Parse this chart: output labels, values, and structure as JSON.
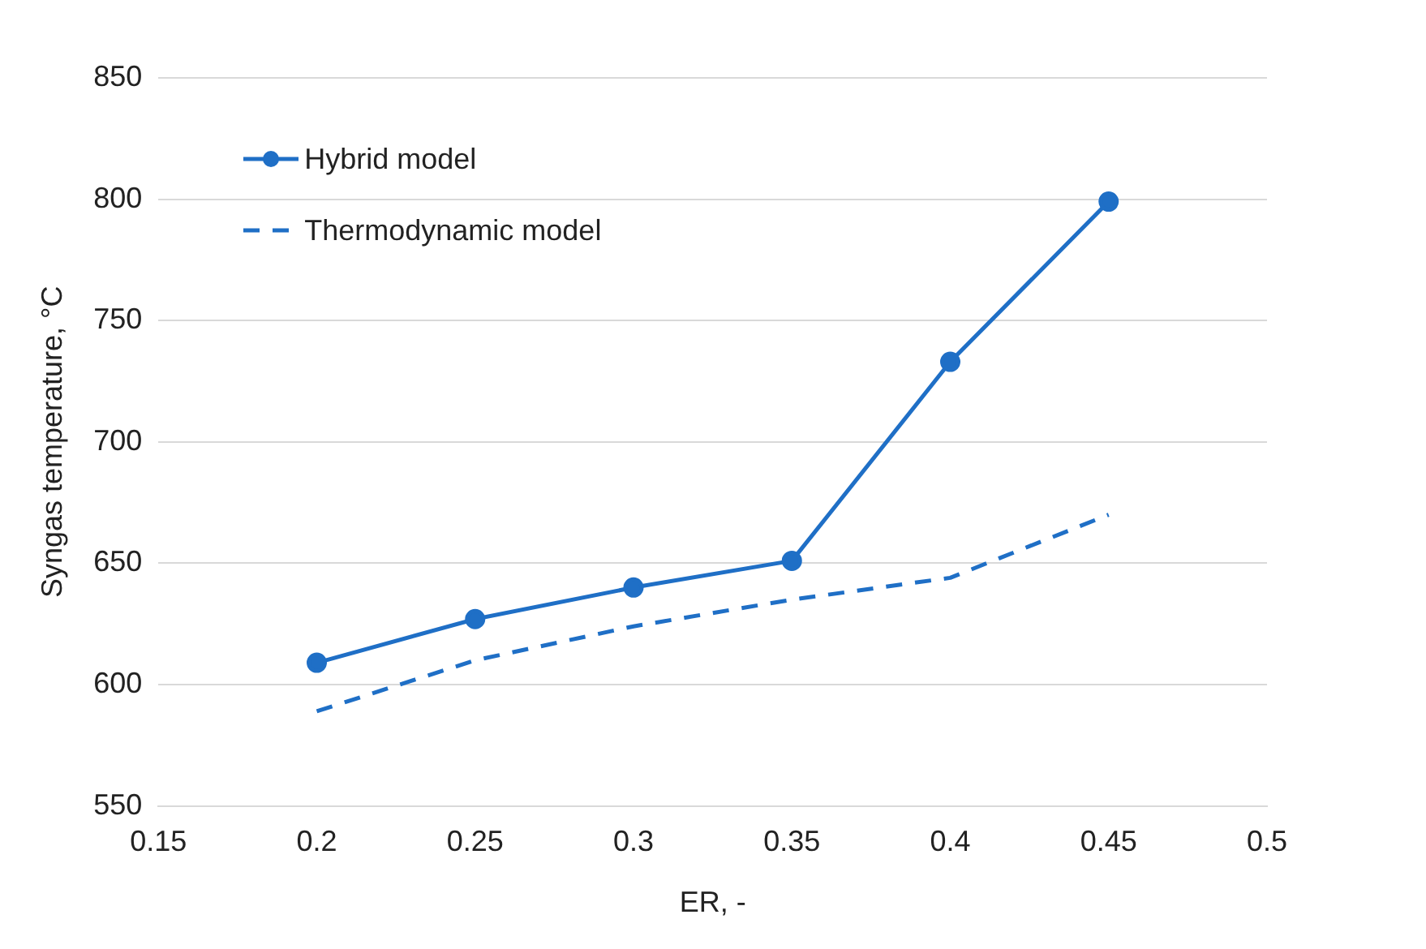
{
  "chart_data": {
    "type": "line",
    "xlabel": "ER, -",
    "ylabel": "Syngas temperature, °C",
    "x": [
      0.2,
      0.25,
      0.3,
      0.35,
      0.4,
      0.45
    ],
    "series": [
      {
        "name": "Hybrid model",
        "color": "#1f6fc6",
        "values": [
          609,
          627,
          640,
          651,
          733,
          799
        ],
        "marker": "circle",
        "line_style": "solid"
      },
      {
        "name": "Thermodynamic model",
        "color": "#1f6fc6",
        "values": [
          589,
          610,
          624,
          635,
          644,
          670
        ],
        "marker": "none",
        "line_style": "dashed"
      }
    ],
    "xlim": [
      0.15,
      0.5
    ],
    "xticks": [
      0.15,
      0.2,
      0.25,
      0.3,
      0.35,
      0.4,
      0.45,
      0.5
    ],
    "ylim": [
      550,
      850
    ],
    "yticks": [
      550,
      600,
      650,
      700,
      750,
      800,
      850
    ],
    "grid": "y",
    "legend": "top left"
  }
}
